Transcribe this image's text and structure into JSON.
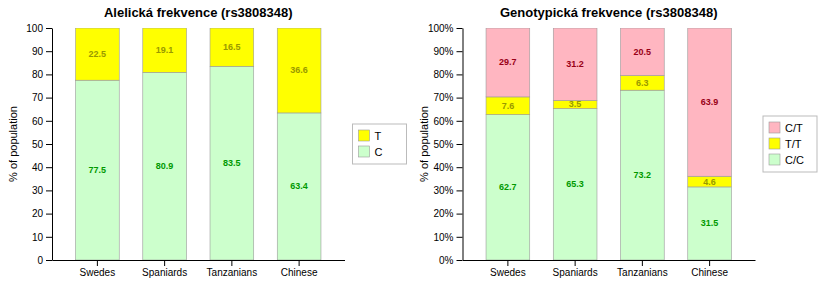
{
  "chart_data": [
    {
      "type": "bar",
      "stacked": true,
      "title": "Alelická frekvence (rs3808348)",
      "categories": [
        "Swedes",
        "Spaniards",
        "Tanzanians",
        "Chinese"
      ],
      "y_label": "% of population",
      "series": [
        {
          "name": "C",
          "color": "#ccffcc",
          "values": [
            77.5,
            80.9,
            83.5,
            63.4
          ]
        },
        {
          "name": "T",
          "color": "#ffff00",
          "values": [
            22.5,
            19.1,
            16.5,
            36.6
          ]
        }
      ],
      "ylim": [
        0,
        100
      ],
      "yticks": [
        0,
        10,
        20,
        30,
        40,
        50,
        60,
        70,
        80,
        90,
        100
      ],
      "grid": false,
      "legend": "right",
      "data_labels": true
    },
    {
      "type": "bar",
      "stacked": true,
      "title": "Genotypická frekvence (rs3808348)",
      "categories": [
        "Swedes",
        "Spaniards",
        "Tanzanians",
        "Chinese"
      ],
      "y_label": "% of population",
      "series": [
        {
          "name": "C/C",
          "color": "#ccffcc",
          "values": [
            62.7,
            65.3,
            73.2,
            31.5
          ]
        },
        {
          "name": "T/T",
          "color": "#ffff00",
          "values": [
            7.6,
            3.5,
            6.3,
            4.6
          ]
        },
        {
          "name": "C/T",
          "color": "#ffb6c1",
          "values": [
            29.7,
            31.2,
            20.5,
            63.9
          ]
        }
      ],
      "ylim": [
        0,
        100
      ],
      "yticks": [
        {
          "value": 0,
          "label": "0%"
        },
        {
          "value": 10,
          "label": "10%"
        },
        {
          "value": 20,
          "label": "20%"
        },
        {
          "value": 30,
          "label": "30%"
        },
        {
          "value": 40,
          "label": "40%"
        },
        {
          "value": 50,
          "label": "50%"
        },
        {
          "value": 60,
          "label": "60%"
        },
        {
          "value": 70,
          "label": "70%"
        },
        {
          "value": 80,
          "label": "80%"
        },
        {
          "value": 90,
          "label": "90%"
        },
        {
          "value": 100,
          "label": "100%"
        }
      ],
      "grid": false,
      "legend": "right",
      "data_labels": true
    }
  ]
}
